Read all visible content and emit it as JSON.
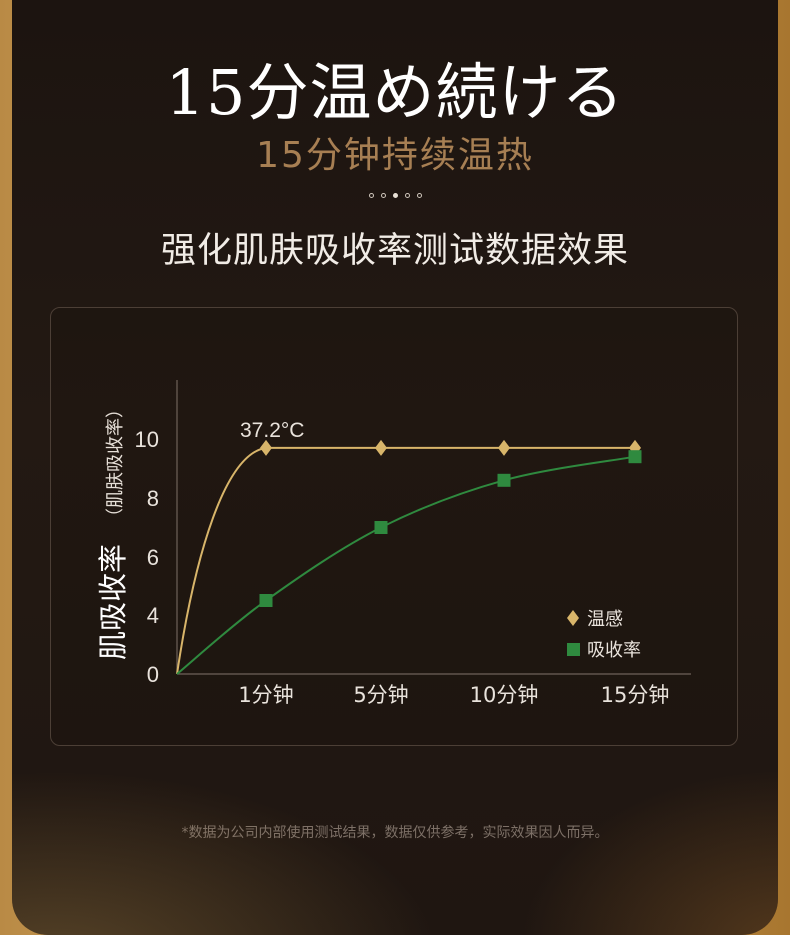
{
  "header": {
    "headline": "15分温め続ける",
    "subheadline": "15分钟持续温热",
    "dots_count": 5,
    "active_dot": 2,
    "section_title": "强化肌肤吸收率测试数据效果"
  },
  "chart_data": {
    "type": "line",
    "title": "",
    "ylabel_main": "肌吸收率",
    "ylabel_sub": "（肌肤吸收率）",
    "xlabel": "",
    "categories": [
      "1分钟",
      "5分钟",
      "10分钟",
      "15分钟"
    ],
    "y_ticks": [
      "0",
      "4",
      "6",
      "8",
      "10"
    ],
    "y_tick_values": [
      0,
      4,
      6,
      8,
      10
    ],
    "annotation": "37.2°C",
    "legend_position": "bottom-right",
    "series": [
      {
        "name": "温感",
        "marker": "diamond",
        "color": "#d8b56a",
        "values": [
          9.7,
          9.7,
          9.7,
          9.7
        ]
      },
      {
        "name": "吸收率",
        "marker": "square",
        "color": "#2f8a3f",
        "values": [
          4.5,
          7.0,
          8.6,
          9.4
        ]
      }
    ]
  },
  "footnote": "*数据为公司内部使用测试结果，数据仅供参考，实际效果因人而异。"
}
